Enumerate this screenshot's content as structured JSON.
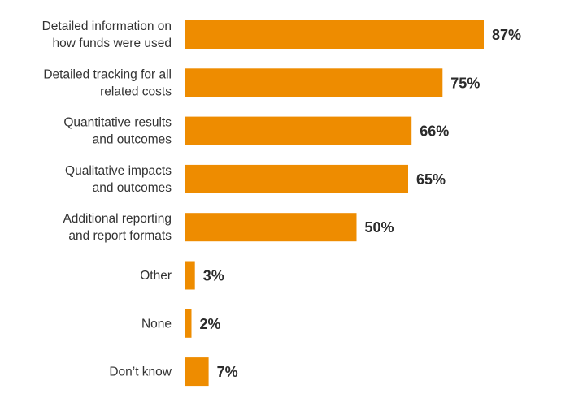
{
  "chart_data": {
    "type": "bar",
    "orientation": "horizontal",
    "categories": [
      [
        "Detailed information on",
        "how funds were used"
      ],
      [
        "Detailed tracking for all",
        "related costs"
      ],
      [
        "Quantitative results",
        "and outcomes"
      ],
      [
        "Qualitative impacts",
        "and outcomes"
      ],
      [
        "Additional reporting",
        "and report formats"
      ],
      [
        "Other"
      ],
      [
        "None"
      ],
      [
        "Don’t know"
      ]
    ],
    "values": [
      87,
      75,
      66,
      65,
      50,
      3,
      2,
      7
    ],
    "value_labels": [
      "87%",
      "75%",
      "66%",
      "65%",
      "50%",
      "3%",
      "2%",
      "7%"
    ],
    "unit": "%",
    "xlim": [
      0,
      100
    ],
    "grid": false,
    "legend": "none",
    "bar_color": "#ee8c00",
    "title": "",
    "xlabel": "",
    "ylabel": ""
  }
}
